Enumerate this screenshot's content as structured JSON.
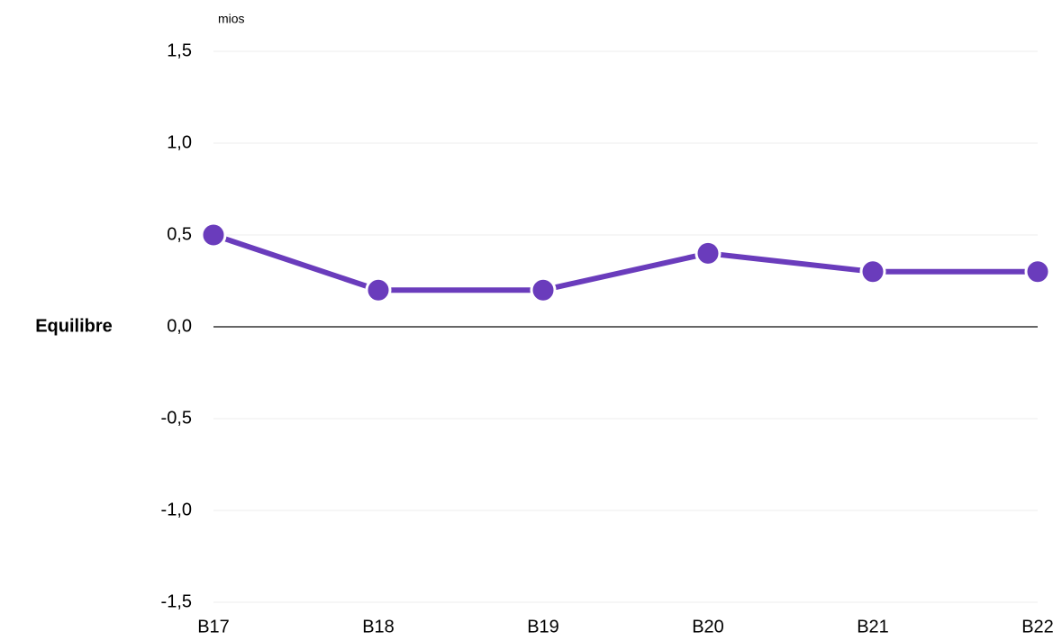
{
  "chart_data": {
    "type": "line",
    "unit_label": "mios",
    "y_label": "Equilibre",
    "categories": [
      "B17",
      "B18",
      "B19",
      "B20",
      "B21",
      "B22"
    ],
    "series": [
      {
        "name": "Equilibre",
        "color": "#6a3cbc",
        "values": [
          0.5,
          0.2,
          0.2,
          0.4,
          0.3,
          0.3
        ]
      }
    ],
    "ylim": [
      -1.5,
      1.5
    ],
    "yticks": [
      {
        "value": -1.5,
        "label": "-1,5"
      },
      {
        "value": -1,
        "label": "-1,0"
      },
      {
        "value": -0.5,
        "label": "-0,5"
      },
      {
        "value": 0,
        "label": "0,0"
      },
      {
        "value": 0.5,
        "label": "0,5"
      },
      {
        "value": 1,
        "label": "1,0"
      },
      {
        "value": 1.5,
        "label": "1,5"
      }
    ],
    "grid": true
  }
}
